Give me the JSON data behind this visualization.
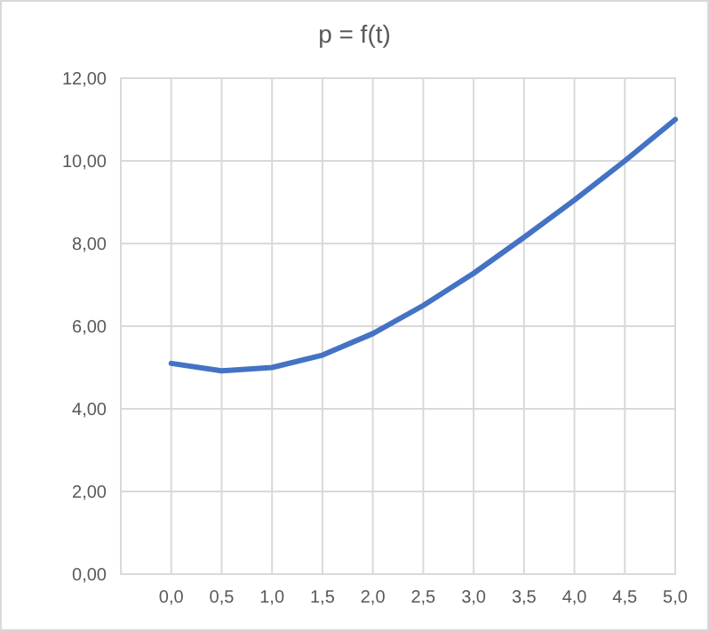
{
  "chart_data": {
    "type": "line",
    "title": "p = f(t)",
    "x": [
      0,
      0.5,
      1,
      1.5,
      2,
      2.5,
      3,
      3.5,
      4,
      4.5,
      5
    ],
    "series": [
      {
        "color": "#4472c4",
        "values": [
          5.1,
          4.92,
          5.0,
          5.3,
          5.82,
          6.5,
          7.28,
          8.15,
          9.05,
          10.0,
          11.0
        ]
      }
    ],
    "xlim": [
      -0.5,
      5
    ],
    "xticks": [
      {
        "value": 0,
        "label": "0,0"
      },
      {
        "value": 0.5,
        "label": "0,5"
      },
      {
        "value": 1,
        "label": "1,0"
      },
      {
        "value": 1.5,
        "label": "1,5"
      },
      {
        "value": 2,
        "label": "2,0"
      },
      {
        "value": 2.5,
        "label": "2,5"
      },
      {
        "value": 3,
        "label": "3,0"
      },
      {
        "value": 3.5,
        "label": "3,5"
      },
      {
        "value": 4,
        "label": "4,0"
      },
      {
        "value": 4.5,
        "label": "4,5"
      },
      {
        "value": 5,
        "label": "5,0"
      }
    ],
    "ylim": [
      0,
      12
    ],
    "yticks": [
      {
        "value": 0,
        "label": "0,00"
      },
      {
        "value": 2,
        "label": "2,00"
      },
      {
        "value": 4,
        "label": "4,00"
      },
      {
        "value": 6,
        "label": "6,00"
      },
      {
        "value": 8,
        "label": "8,00"
      },
      {
        "value": 10,
        "label": "10,00"
      },
      {
        "value": 12,
        "label": "12,00"
      }
    ],
    "grid": true,
    "marker": "none",
    "line_style": "solid"
  }
}
